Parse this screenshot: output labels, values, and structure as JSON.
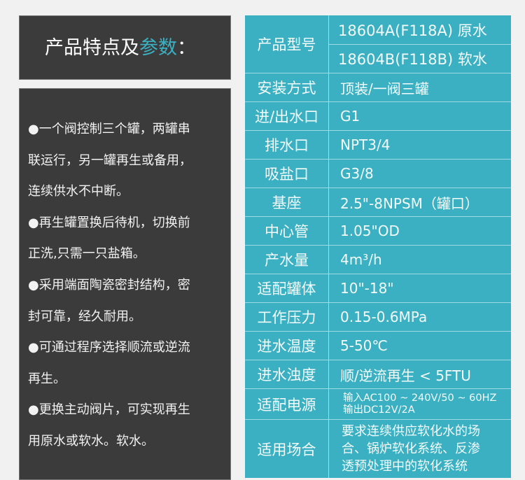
{
  "title": {
    "main": "产品特点及",
    "highlight": "参数",
    "colon": "："
  },
  "features": [
    "●一个阀控制三个罐，两罐串",
    "联运行，另一罐再生或备用，",
    "连续供水不中断。",
    "●再生罐置换后待机，切换前",
    "正洗,只需一只盐箱。",
    "●采用端面陶瓷密封结构，密",
    "封可靠，经久耐用。",
    "●可通过程序选择顺流或逆流",
    "再生。",
    "●更换主动阀片，可实现再生",
    "用原水或软水。软水。"
  ],
  "specs": {
    "model_label": "产品型号",
    "model_a": "18604A(F118A) 原水",
    "model_b": "18604B(F118B) 软水",
    "rows": [
      {
        "label": "安装方式",
        "value": "顶装/一阀三罐"
      },
      {
        "label": "进/出水口",
        "value": "G1"
      },
      {
        "label": "排水口",
        "value": "NPT3/4"
      },
      {
        "label": "吸盐口",
        "value": "G3/8"
      },
      {
        "label": "基座",
        "value": "2.5\"-8NPSM（罐口）"
      },
      {
        "label": "中心管",
        "value": "1.05\"OD"
      },
      {
        "label": "产水量",
        "value": "4m³/h"
      },
      {
        "label": "适配罐体",
        "value": "10\"-18\""
      },
      {
        "label": "工作压力",
        "value": "0.15-0.6MPa"
      },
      {
        "label": "进水温度",
        "value": "5-50℃"
      },
      {
        "label": "进水浊度",
        "value": "顺/逆流再生 < 5FTU"
      }
    ],
    "power_label": "适配电源",
    "power_in": "输入AC100 ~ 240V/50 ~ 60HZ",
    "power_out": "输出DC12V/2A",
    "use_label": "适用场合",
    "use_lines": [
      "要求连续供应软化水的场",
      "合、锅炉软化系统、反渗",
      "透预处理中的软化系统"
    ]
  },
  "colors": {
    "teal": "#3ab0c2",
    "dark": "#3b3b3b"
  }
}
